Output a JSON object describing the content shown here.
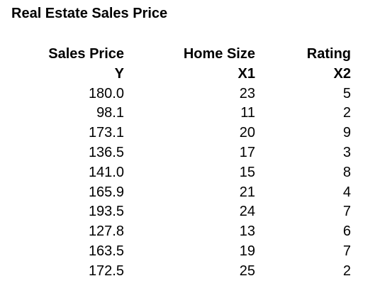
{
  "title": "Real Estate Sales Price",
  "columns": [
    {
      "header": "Sales Price",
      "symbol": "Y",
      "values": [
        "180.0",
        "98.1",
        "173.1",
        "136.5",
        "141.0",
        "165.9",
        "193.5",
        "127.8",
        "163.5",
        "172.5"
      ]
    },
    {
      "header": "Home Size",
      "symbol": "X1",
      "values": [
        "23",
        "11",
        "20",
        "17",
        "15",
        "21",
        "24",
        "13",
        "19",
        "25"
      ]
    },
    {
      "header": "Rating",
      "symbol": "X2",
      "values": [
        "5",
        "2",
        "9",
        "3",
        "8",
        "4",
        "7",
        "6",
        "7",
        "2"
      ]
    }
  ]
}
